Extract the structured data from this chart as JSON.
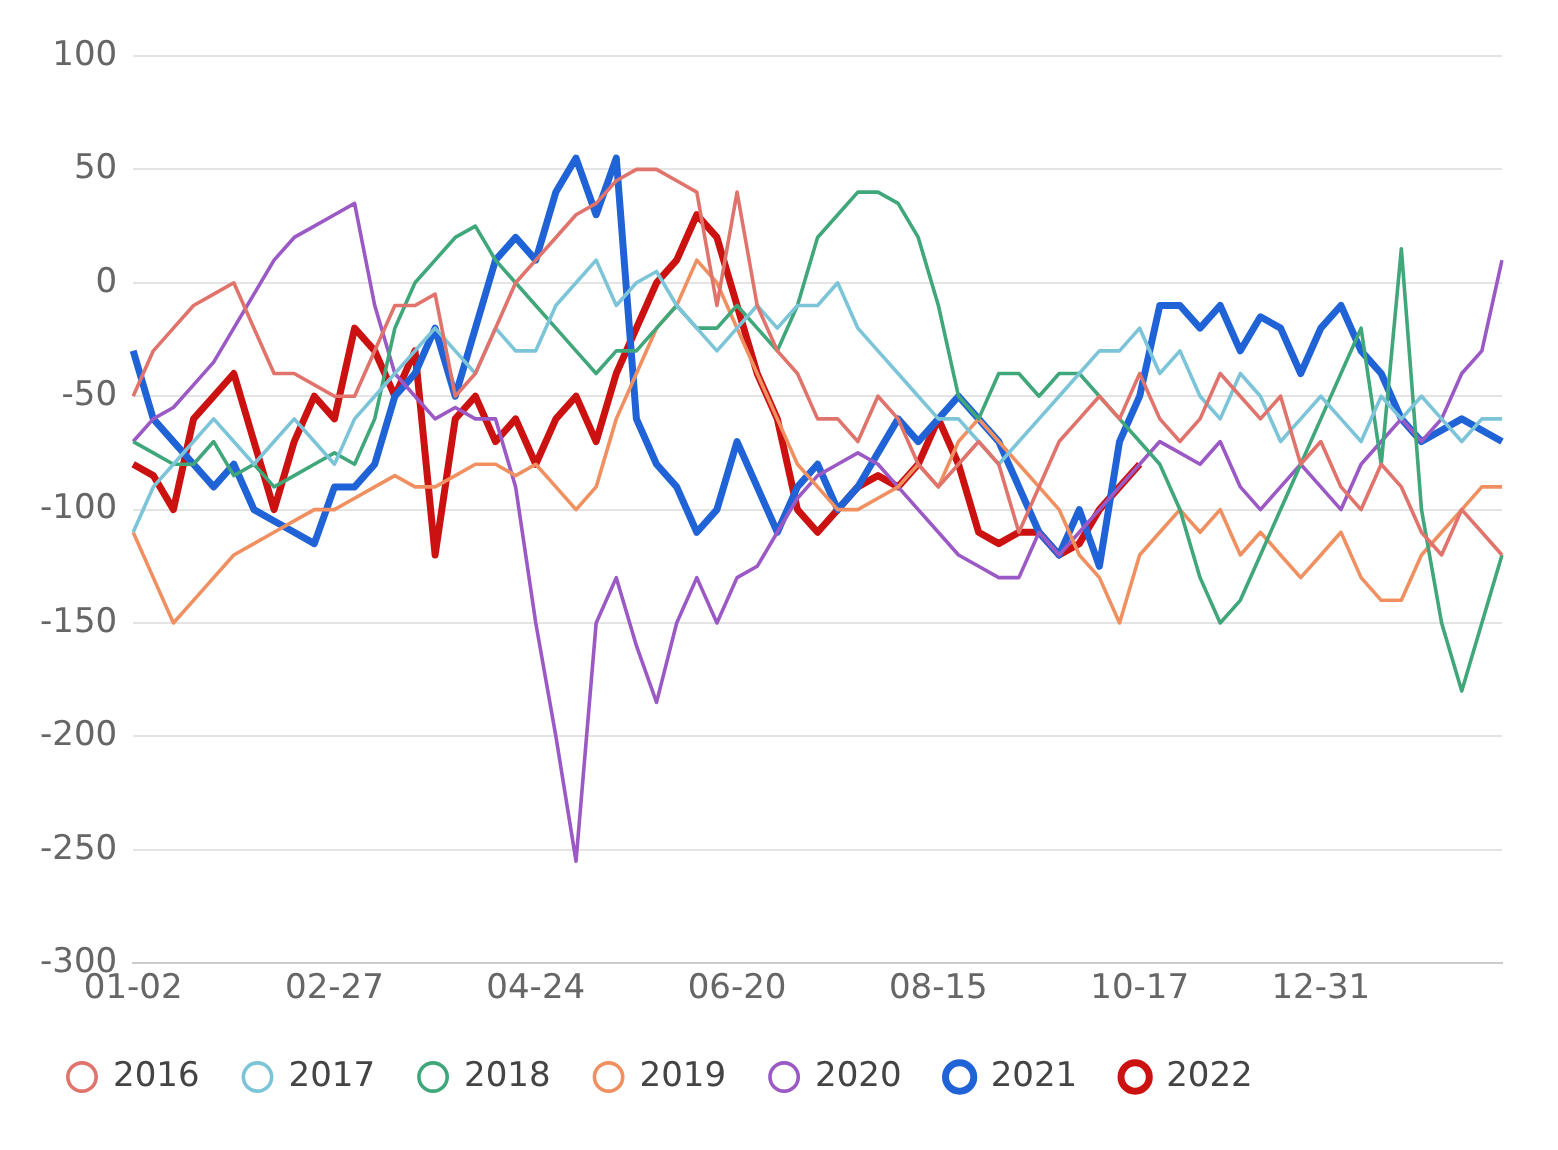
{
  "chart_data": {
    "type": "line",
    "categories": [
      "01-02",
      null,
      null,
      null,
      null,
      null,
      null,
      null,
      null,
      null,
      "02-27",
      null,
      null,
      null,
      null,
      null,
      null,
      null,
      null,
      null,
      "04-24",
      null,
      null,
      null,
      null,
      null,
      null,
      null,
      null,
      null,
      "06-20",
      null,
      null,
      null,
      null,
      null,
      null,
      null,
      null,
      null,
      "08-15",
      null,
      null,
      null,
      null,
      null,
      null,
      null,
      null,
      null,
      "10-17",
      null,
      null,
      null,
      null,
      null,
      null,
      null,
      null,
      "12-31",
      null,
      null,
      null,
      null,
      null,
      null,
      null,
      null,
      null
    ],
    "series": [
      {
        "name": "2016",
        "color": "#e0736b",
        "values": [
          -50,
          -30,
          -20,
          -10,
          -5,
          0,
          -20,
          -40,
          -40,
          -45,
          -50,
          -50,
          -30,
          -10,
          -10,
          -5,
          -50,
          -40,
          -20,
          0,
          10,
          20,
          30,
          35,
          45,
          50,
          50,
          45,
          40,
          -10,
          40,
          -10,
          -30,
          -40,
          -60,
          -60,
          -70,
          -50,
          -60,
          -80,
          -90,
          -80,
          -70,
          -80,
          -110,
          -90,
          -70,
          -60,
          -50,
          -60,
          -40,
          -60,
          -70,
          -60,
          -40,
          -50,
          -60,
          -50,
          -80,
          -70,
          -90,
          -100,
          -80,
          -90,
          -110,
          -120,
          -100,
          -110,
          -120
        ]
      },
      {
        "name": "2017",
        "color": "#7cc4d8",
        "values": [
          -110,
          -90,
          -80,
          -70,
          -60,
          -70,
          -80,
          -70,
          -60,
          -70,
          -80,
          -60,
          -50,
          -40,
          -30,
          -20,
          -30,
          -40,
          -20,
          -30,
          -30,
          -10,
          0,
          10,
          -10,
          0,
          5,
          -10,
          -20,
          -30,
          -20,
          -10,
          -20,
          -10,
          -10,
          0,
          -20,
          -30,
          -40,
          -50,
          -60,
          -60,
          -70,
          -80,
          -70,
          -60,
          -50,
          -40,
          -30,
          -30,
          -20,
          -40,
          -30,
          -50,
          -60,
          -40,
          -50,
          -70,
          -60,
          -50,
          -60,
          -70,
          -50,
          -60,
          -50,
          -60,
          -70,
          -60,
          -60
        ]
      },
      {
        "name": "2018",
        "color": "#3fa77a",
        "values": [
          -70,
          -75,
          -80,
          -80,
          -70,
          -85,
          -80,
          -90,
          -85,
          -80,
          -75,
          -80,
          -60,
          -20,
          0,
          10,
          20,
          25,
          10,
          0,
          -10,
          -20,
          -30,
          -40,
          -30,
          -30,
          -20,
          -10,
          -20,
          -20,
          -10,
          -20,
          -30,
          -10,
          20,
          30,
          40,
          40,
          35,
          20,
          -10,
          -50,
          -60,
          -40,
          -40,
          -50,
          -40,
          -40,
          -50,
          -60,
          -70,
          -80,
          -100,
          -130,
          -150,
          -140,
          -120,
          -100,
          -80,
          -60,
          -40,
          -20,
          -80,
          15,
          -100,
          -150,
          -180,
          -150,
          -120
        ]
      },
      {
        "name": "2019",
        "color": "#f09060",
        "values": [
          -110,
          -130,
          -150,
          -140,
          -130,
          -120,
          -115,
          -110,
          -105,
          -100,
          -100,
          -95,
          -90,
          -85,
          -90,
          -90,
          -85,
          -80,
          -80,
          -85,
          -80,
          -90,
          -100,
          -90,
          -60,
          -40,
          -20,
          -10,
          10,
          0,
          -20,
          -40,
          -60,
          -80,
          -90,
          -100,
          -100,
          -95,
          -90,
          -80,
          -90,
          -70,
          -60,
          -70,
          -80,
          -90,
          -100,
          -120,
          -130,
          -150,
          -120,
          -110,
          -100,
          -110,
          -100,
          -120,
          -110,
          -120,
          -130,
          -120,
          -110,
          -130,
          -140,
          -140,
          -120,
          -110,
          -100,
          -90,
          -90
        ]
      },
      {
        "name": "2020",
        "color": "#9b59c6",
        "values": [
          -70,
          -60,
          -55,
          -45,
          -35,
          -20,
          -5,
          10,
          20,
          25,
          30,
          35,
          -10,
          -40,
          -50,
          -60,
          -55,
          -60,
          -60,
          -90,
          -150,
          -200,
          -255,
          -150,
          -130,
          -160,
          -185,
          -150,
          -130,
          -150,
          -130,
          -125,
          -110,
          -95,
          -85,
          -80,
          -75,
          -80,
          -90,
          -100,
          -110,
          -120,
          -125,
          -130,
          -130,
          -110,
          -120,
          -110,
          -100,
          -90,
          -80,
          -70,
          -75,
          -80,
          -70,
          -90,
          -100,
          -90,
          -80,
          -90,
          -100,
          -80,
          -70,
          -60,
          -70,
          -60,
          -40,
          -30,
          10
        ]
      },
      {
        "name": "2021",
        "color": "#1f63d6",
        "values": [
          -30,
          -60,
          -70,
          -80,
          -90,
          -80,
          -100,
          -105,
          -110,
          -115,
          -90,
          -90,
          -80,
          -50,
          -40,
          -20,
          -50,
          -20,
          10,
          20,
          10,
          40,
          55,
          30,
          55,
          -60,
          -80,
          -90,
          -110,
          -100,
          -70,
          -90,
          -110,
          -90,
          -80,
          -100,
          -90,
          -75,
          -60,
          -70,
          -60,
          -50,
          -60,
          -70,
          -90,
          -110,
          -120,
          -100,
          -125,
          -70,
          -50,
          -10,
          -10,
          -20,
          -10,
          -30,
          -15,
          -20,
          -40,
          -20,
          -10,
          -30,
          -40,
          -60,
          -70,
          -65,
          -60,
          -65,
          -70
        ]
      },
      {
        "name": "2022",
        "color": "#cc1111",
        "values": [
          -80,
          -85,
          -100,
          -60,
          -50,
          -40,
          -70,
          -100,
          -70,
          -50,
          -60,
          -20,
          -30,
          -50,
          -30,
          -120,
          -60,
          -50,
          -70,
          -60,
          -80,
          -60,
          -50,
          -70,
          -40,
          -20,
          0,
          10,
          30,
          20,
          -10,
          -40,
          -60,
          -100,
          -110,
          -100,
          -90,
          -85,
          -90,
          -80,
          -60,
          -80,
          -110,
          -115,
          -110,
          -110,
          -120,
          -115,
          -100,
          -90,
          -80,
          null,
          null,
          null,
          null,
          null,
          null,
          null,
          null,
          null,
          null,
          null,
          null,
          null,
          null,
          null,
          null,
          null,
          null
        ]
      }
    ],
    "ylim": [
      -300,
      100
    ],
    "yticks": [
      -300,
      -250,
      -200,
      -150,
      -100,
      -50,
      0,
      50,
      100
    ],
    "grid": "y",
    "legend": "bottom",
    "marker": "none",
    "line_style": "solid"
  }
}
